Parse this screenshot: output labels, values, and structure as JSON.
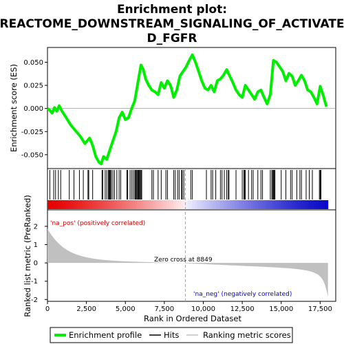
{
  "chart_data": {
    "type": "line",
    "title_line1": "Enrichment plot:",
    "title_line2": "REACTOME_DOWNSTREAM_SIGNALING_OF_ACTIVATE",
    "title_line3": "D_FGFR",
    "es_ylabel": "Enrichment score (ES)",
    "rank_ylabel_1": "Ranked list metric (PreRanked)",
    "xlabel": "Rank in Ordered Dataset",
    "xlim": [
      0,
      18500
    ],
    "es_ylim": [
      -0.065,
      0.066
    ],
    "rank_ylim": [
      -2.1,
      2.9
    ],
    "x_ticks": [
      0,
      2500,
      5000,
      7500,
      10000,
      12500,
      15000,
      17500
    ],
    "x_tick_labels": [
      "0",
      "2,500",
      "5,000",
      "7,500",
      "10,000",
      "12,500",
      "15,000",
      "17,500"
    ],
    "es_ticks": [
      0.05,
      0.025,
      0.0,
      -0.025,
      -0.05
    ],
    "es_tick_labels": [
      "0.050",
      "0.025",
      "0.000",
      "-0.025",
      "-0.050"
    ],
    "rank_ticks": [
      2,
      1,
      0,
      -1,
      -2
    ],
    "rank_tick_labels": [
      "2",
      "1",
      "0",
      "-1",
      "-2"
    ],
    "series": [
      {
        "name": "Enrichment profile",
        "color": "#00ee00",
        "x": [
          0,
          150,
          300,
          450,
          600,
          750,
          900,
          1200,
          1500,
          1800,
          2100,
          2400,
          2700,
          2900,
          3100,
          3300,
          3450,
          3600,
          3800,
          4000,
          4200,
          4400,
          4600,
          4800,
          5000,
          5200,
          5400,
          5600,
          5800,
          6000,
          6150,
          6300,
          6500,
          6700,
          6900,
          7100,
          7300,
          7500,
          7700,
          7900,
          8100,
          8300,
          8500,
          8700,
          8900,
          9100,
          9300,
          9500,
          9700,
          9900,
          10100,
          10300,
          10500,
          10700,
          10900,
          11100,
          11300,
          11500,
          11700,
          11900,
          12100,
          12300,
          12500,
          12700,
          12900,
          13100,
          13300,
          13500,
          13700,
          13900,
          14100,
          14300,
          14500,
          14700,
          14900,
          15100,
          15300,
          15500,
          15700,
          15900,
          16100,
          16300,
          16500,
          16700,
          16900,
          17100,
          17300,
          17500,
          17700,
          17900
        ],
        "y": [
          0.0,
          -0.002,
          -0.005,
          0.001,
          -0.003,
          0.003,
          -0.002,
          -0.01,
          -0.018,
          -0.024,
          -0.03,
          -0.038,
          -0.032,
          -0.04,
          -0.052,
          -0.058,
          -0.06,
          -0.052,
          -0.055,
          -0.045,
          -0.035,
          -0.025,
          -0.01,
          -0.004,
          -0.012,
          -0.01,
          0.0,
          0.008,
          0.028,
          0.047,
          0.042,
          0.032,
          0.025,
          0.02,
          0.018,
          0.015,
          0.028,
          0.022,
          0.03,
          0.025,
          0.012,
          0.02,
          0.035,
          0.04,
          0.045,
          0.052,
          0.058,
          0.05,
          0.04,
          0.03,
          0.022,
          0.02,
          0.025,
          0.018,
          0.03,
          0.032,
          0.036,
          0.042,
          0.035,
          0.028,
          0.02,
          0.015,
          0.012,
          0.025,
          0.02,
          0.015,
          0.01,
          0.018,
          0.02,
          0.012,
          0.005,
          0.015,
          0.052,
          0.05,
          0.045,
          0.04,
          0.03,
          0.038,
          0.035,
          0.025,
          0.03,
          0.036,
          0.03,
          0.02,
          0.018,
          0.012,
          0.005,
          0.024,
          0.014,
          0.002
        ]
      }
    ],
    "hits": [
      150,
      400,
      520,
      700,
      850,
      1400,
      1700,
      2050,
      2300,
      2600,
      2650,
      2900,
      3500,
      3550,
      3700,
      3800,
      3900,
      3950,
      4000,
      4050,
      4100,
      4200,
      4300,
      4450,
      4600,
      4700,
      5100,
      5150,
      5300,
      5400,
      5500,
      5600,
      5650,
      5700,
      5750,
      5800,
      5850,
      5900,
      5950,
      6000,
      6050,
      6700,
      6800,
      7100,
      7300,
      7600,
      7700,
      8100,
      8200,
      8350,
      8450,
      8600,
      8650,
      8750,
      9200,
      9300,
      10200,
      10500,
      10600,
      10800,
      11100,
      11200,
      11350,
      11500,
      11600,
      11650,
      12100,
      12500,
      12600,
      12650,
      12700,
      12900,
      13100,
      13200,
      13500,
      13700,
      13800,
      14300,
      14400,
      14450,
      14500,
      14550,
      14600,
      15000,
      15300,
      15600,
      15700,
      16000,
      16200,
      16300,
      16600,
      16800,
      17000,
      17450,
      17500,
      17550
    ],
    "zero_cross_label": "Zero cross at 8849",
    "zero_cross": 8849,
    "pos_label": "'na_pos' (positively correlated)",
    "neg_label": "'na_neg' (negatively correlated)",
    "total_rank": 18000,
    "colors": {
      "es_line": "#00ee00",
      "hit": "#000000",
      "pos_label": "#cc0000",
      "neg_label": "#0000cc",
      "metric_fill": "#c0c0c0",
      "zero_line": "#a0a0a0"
    },
    "legend": {
      "placement": "bottom",
      "entries": [
        "Enrichment profile",
        "Hits",
        "Ranking metric scores"
      ]
    }
  }
}
